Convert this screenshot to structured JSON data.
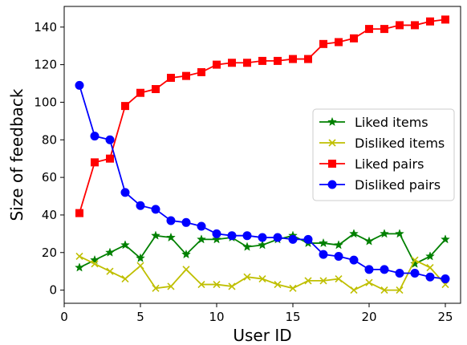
{
  "chart_data": {
    "type": "line",
    "title": "",
    "xlabel": "User ID",
    "ylabel": "Size of feedback",
    "xlim": [
      0,
      26
    ],
    "ylim": [
      -7,
      151
    ],
    "xticks": [
      0,
      5,
      10,
      15,
      20,
      25
    ],
    "yticks": [
      0,
      20,
      40,
      60,
      80,
      100,
      120,
      140
    ],
    "grid": false,
    "legend_position": "center-right",
    "x": [
      1,
      2,
      3,
      4,
      5,
      6,
      7,
      8,
      9,
      10,
      11,
      12,
      13,
      14,
      15,
      16,
      17,
      18,
      19,
      20,
      21,
      22,
      23,
      24,
      25
    ],
    "series": [
      {
        "name": "Liked items",
        "color": "#008000",
        "marker": "star",
        "values": [
          12,
          16,
          20,
          24,
          17,
          29,
          28,
          19,
          27,
          27,
          28,
          23,
          24,
          27,
          29,
          25,
          25,
          24,
          30,
          26,
          30,
          30,
          14,
          18,
          27
        ]
      },
      {
        "name": "Disliked items",
        "color": "#bfbf00",
        "marker": "x",
        "values": [
          18,
          14,
          10,
          6,
          13,
          1,
          2,
          11,
          3,
          3,
          2,
          7,
          6,
          3,
          1,
          5,
          5,
          6,
          0,
          4,
          0,
          0,
          16,
          12,
          3
        ]
      },
      {
        "name": "Liked pairs",
        "color": "#ff0000",
        "marker": "square",
        "values": [
          41,
          68,
          70,
          98,
          105,
          107,
          113,
          114,
          116,
          120,
          121,
          121,
          122,
          122,
          123,
          123,
          131,
          132,
          134,
          139,
          139,
          141,
          141,
          143,
          144
        ]
      },
      {
        "name": "Disliked pairs",
        "color": "#0000ff",
        "marker": "circle",
        "values": [
          109,
          82,
          80,
          52,
          45,
          43,
          37,
          36,
          34,
          30,
          29,
          29,
          28,
          28,
          27,
          27,
          19,
          18,
          16,
          11,
          11,
          9,
          9,
          7,
          6
        ]
      }
    ]
  }
}
